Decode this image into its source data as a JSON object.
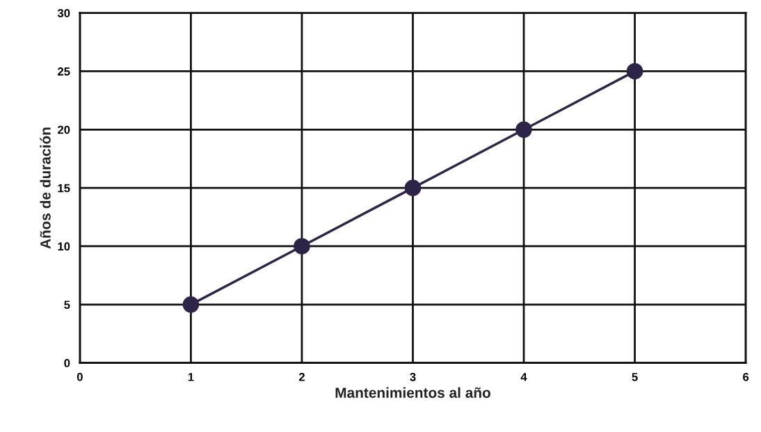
{
  "chart_data": {
    "type": "line",
    "xlabel": "Mantenimientos al año",
    "ylabel": "Años de duración",
    "x": [
      1,
      2,
      3,
      4,
      5
    ],
    "series": [
      {
        "color": "#2e2448",
        "values": [
          5,
          10,
          15,
          20,
          25
        ]
      }
    ],
    "marker": "circle",
    "line_style": "solid",
    "xlim": [
      0,
      6
    ],
    "xticks": [
      0,
      1,
      2,
      3,
      4,
      5,
      6
    ],
    "ylim": [
      0,
      30
    ],
    "yticks": [
      0,
      5,
      10,
      15,
      20,
      25,
      30
    ],
    "grid": true,
    "legend": false
  }
}
